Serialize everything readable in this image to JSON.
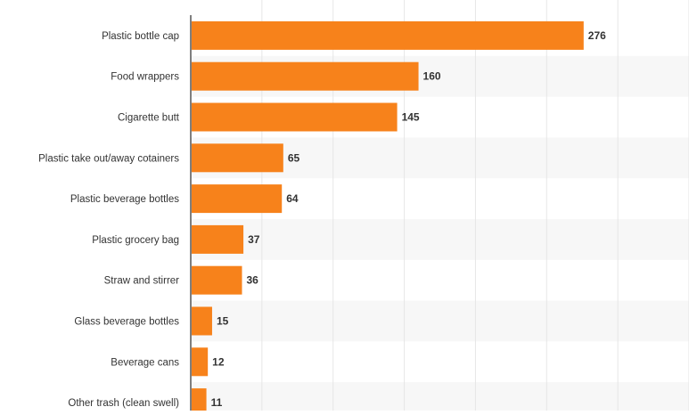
{
  "chart_data": {
    "type": "bar",
    "orientation": "horizontal",
    "categories": [
      "Plastic bottle cap",
      "Food wrappers",
      "Cigarette butt",
      "Plastic take out/away cotainers",
      "Plastic beverage bottles",
      "Plastic grocery bag",
      "Straw and stirrer",
      "Glass beverage bottles",
      "Beverage cans",
      "Other trash (clean swell)"
    ],
    "values": [
      276,
      160,
      145,
      65,
      64,
      37,
      36,
      15,
      12,
      11
    ],
    "xlim": [
      0,
      350
    ],
    "grid": true,
    "title": "",
    "xlabel": "",
    "ylabel": "",
    "colors": {
      "bar": "#f7821b",
      "band": "#f7f7f7",
      "grid": "#e6e6e6",
      "axis": "#555555",
      "category_label": "#333333",
      "value_label": "#333333"
    }
  }
}
